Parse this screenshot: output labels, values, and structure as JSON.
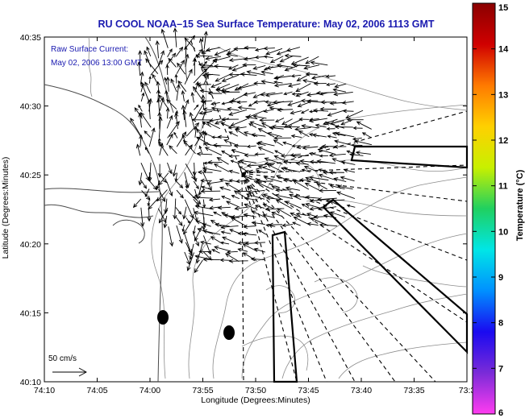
{
  "title": "RU COOL  NOAA–15  Sea Surface Temperature:  May 02, 2006 1113 GMT",
  "annotation": {
    "line1": "Raw Surface Current:",
    "line2": "May 02, 2006 13:00 GMT"
  },
  "scale_label": "50 cm/s",
  "x_axis": {
    "label": "Longitude (Degrees:Minutes)",
    "ticks": [
      "74:10",
      "74:05",
      "74:00",
      "73:55",
      "73:50",
      "73:45",
      "73:40",
      "73:35",
      "73:3"
    ]
  },
  "y_axis": {
    "label": "Latitude (Degrees:Minutes)",
    "ticks": [
      "40:35",
      "40:30",
      "40:25",
      "40:20",
      "40:15",
      "40:10"
    ]
  },
  "colorbar": {
    "label": "Temperature (°C)",
    "ticks": [
      "15",
      "14",
      "13",
      "12",
      "11",
      "10",
      "9",
      "8",
      "7",
      "6"
    ],
    "min": 6,
    "max": 15,
    "colors": [
      "#ff3cf0",
      "#7a2bd8",
      "#1a0af0",
      "#0090ff",
      "#00e6e6",
      "#20d060",
      "#c8f000",
      "#ffd000",
      "#ff7a00",
      "#d00000",
      "#8a0000"
    ]
  },
  "map_features": {
    "contours": "gray bathymetry contours",
    "coastline": "New Jersey / Raritan Bay coast",
    "current_vectors": "black arrows",
    "survey_boxes": [
      "box-east-narrow",
      "box-diagonal",
      "box-south-narrow"
    ],
    "dashed_lines": "radial dashed lines from Sandy Hook region",
    "markers": [
      "black-dot-1",
      "black-dot-2"
    ]
  }
}
